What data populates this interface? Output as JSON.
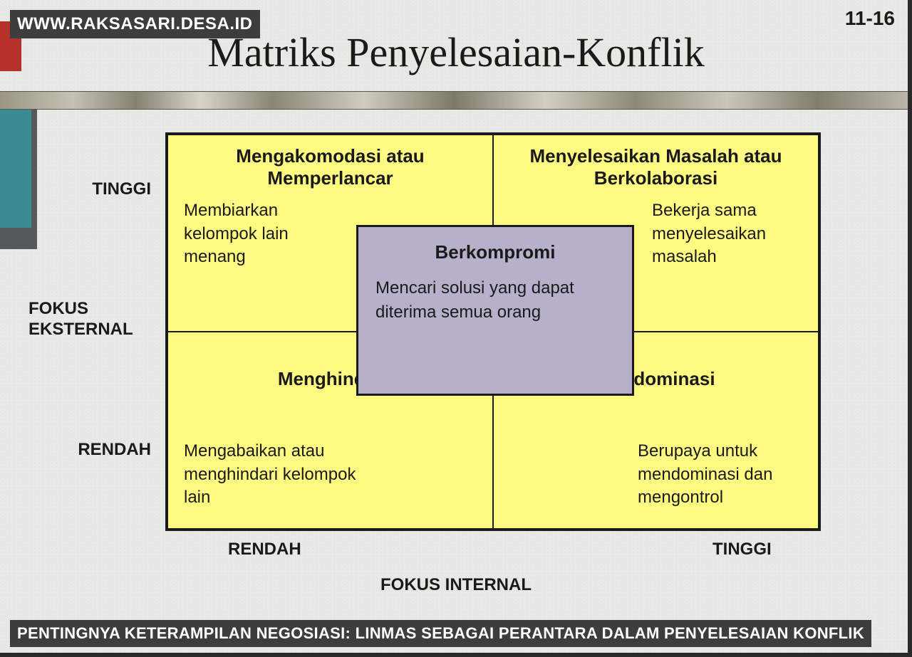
{
  "page_number": "11-16",
  "watermark": "WWW.RAKSASARI.DESA.ID",
  "caption": "PENTINGNYA KETERAMPILAN NEGOSIASI: LINMAS SEBAGAI PERANTARA DALAM PENYELESAIAN KONFLIK",
  "title": "Matriks Penyelesaian-Konflik",
  "colors": {
    "cell_bg": "#fffb82",
    "center_bg": "#b6b0cb",
    "border": "#1a1a1a",
    "page_bg": "#e8e8e4",
    "bar_red": "#b6312a",
    "bar_gray": "#545a5c",
    "bar_teal": "#3b8b91",
    "overlay_bg": "#3d3d3d",
    "overlay_fg": "#ffffff"
  },
  "axes": {
    "y_title_line1": "FOKUS",
    "y_title_line2": "EKSTERNAL",
    "y_high": "TINGGI",
    "y_low": "RENDAH",
    "x_title": "FOKUS INTERNAL",
    "x_low": "RENDAH",
    "x_high": "TINGGI"
  },
  "matrix": {
    "type": "2x2-matrix",
    "cells": {
      "top_left": {
        "title": "Mengakomodasi atau Memperlancar",
        "desc": "Membiarkan kelompok lain menang"
      },
      "top_right": {
        "title": "Menyelesaikan Masalah atau Berkolaborasi",
        "desc": "Bekerja sama menyelesaikan masalah"
      },
      "bottom_left": {
        "title": "Menghindar",
        "desc": "Mengabaikan atau menghindari kelompok lain"
      },
      "bottom_right": {
        "title": "Mendominasi",
        "desc": "Berupaya untuk mendominasi dan mengontrol"
      }
    },
    "center": {
      "title": "Berkompromi",
      "desc": "Mencari solusi yang dapat diterima semua orang"
    }
  }
}
